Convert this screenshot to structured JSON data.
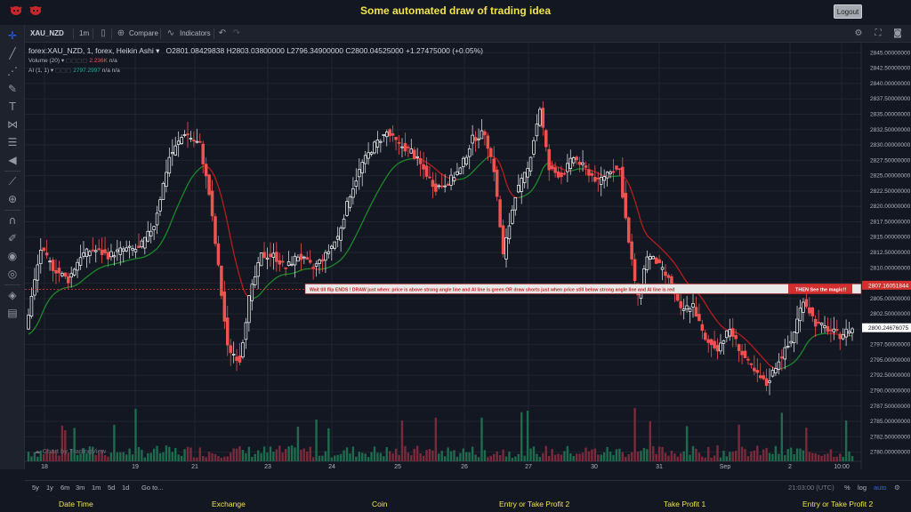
{
  "app": {
    "title": "Some automated draw of trading idea",
    "logout_label": "Logout"
  },
  "toolbar": {
    "symbol": "XAU_NZD",
    "interval": "1m",
    "compare_label": "Compare",
    "indicators_label": "Indicators"
  },
  "legend": {
    "title": "forex:XAU_NZD, 1, forex, Heikin Ashi",
    "open": "O2801.08429838",
    "high": "H2803.03800000",
    "low": "L2796.34900000",
    "close": "C2800.04525000",
    "change": "+1.27475000 (+0.05%)",
    "volume_label": "Volume (20)",
    "volume_value": "2.236K",
    "volume_na": "n/a",
    "ai_label": "AI (1, 1)",
    "ai_value": "2797.2997",
    "ai_na1": "n/a",
    "ai_na2": "n/a"
  },
  "annotation": {
    "text_1": "Wait till flip ENDS  !   DRAW just when:  price is above strong angle line and AI line is green        OR        draw shorts just when price still below strong angle line and AI line is red",
    "text_2": "THEN See the magic!!"
  },
  "price_axis": {
    "labels": [
      "2845.00000000",
      "2842.50000000",
      "2840.00000000",
      "2837.50000000",
      "2835.00000000",
      "2832.50000000",
      "2830.00000000",
      "2827.50000000",
      "2825.00000000",
      "2822.50000000",
      "2820.00000000",
      "2817.50000000",
      "2815.00000000",
      "2812.50000000",
      "2810.00000000",
      "2807.50000000",
      "2805.00000000",
      "2802.50000000",
      "2800.00000000",
      "2797.50000000",
      "2795.00000000",
      "2792.50000000",
      "2790.00000000",
      "2787.50000000",
      "2785.00000000",
      "2782.50000000",
      "2780.00000000"
    ],
    "marker_red": "2807.16051844",
    "marker_white": "2800.24676075"
  },
  "time_axis": {
    "labels": [
      "18",
      "19",
      "21",
      "23",
      "24",
      "25",
      "26",
      "27",
      "30",
      "31",
      "Sep",
      "2",
      "10:00"
    ]
  },
  "bottom": {
    "ranges": [
      "5y",
      "1y",
      "6m",
      "3m",
      "1m",
      "5d",
      "1d"
    ],
    "goto_label": "Go to...",
    "time": "21:03:00 (UTC)",
    "percent_label": "%",
    "log_label": "log",
    "auto_label": "auto"
  },
  "footer": {
    "tabs": [
      "Date Time",
      "Exchange",
      "Coin",
      "Entry or Take Profit 2",
      "Take Profit 1",
      "Entry or Take Profit 2"
    ]
  },
  "branding": {
    "chart_by": "Chart by TradingView"
  },
  "colors": {
    "bg": "#131722",
    "up": "#ffffff",
    "down": "#ef5350",
    "ai_green": "#1b8a2a",
    "ai_red": "#b71c1c",
    "vol_up": "#1e6b4e",
    "vol_down": "#7a2b3b",
    "accent": "#2962ff",
    "title_yellow": "#f0e44a"
  },
  "icons": [
    "crosshair-icon",
    "trend-line-icon",
    "fib-icon",
    "brush-icon",
    "text-icon",
    "pattern-icon",
    "measure-icon",
    "back-arrow-icon",
    "ruler-icon",
    "zoom-icon",
    "magnet-icon",
    "lock-draw-icon",
    "eye-icon",
    "layers-icon",
    "trash-icon"
  ],
  "chart_data": {
    "type": "candlestick",
    "ylim": [
      2778.5,
      2846.5
    ],
    "y_ticks": [
      2780,
      2782.5,
      2785,
      2787.5,
      2790,
      2792.5,
      2795,
      2797.5,
      2800,
      2802.5,
      2805,
      2807.5,
      2810,
      2812.5,
      2815,
      2817.5,
      2820,
      2822.5,
      2825,
      2827.5,
      2830,
      2832.5,
      2835,
      2837.5,
      2840,
      2842.5,
      2845
    ],
    "x_labels": [
      "18",
      "19",
      "21",
      "23",
      "24",
      "25",
      "26",
      "27",
      "30",
      "31",
      "Sep",
      "2",
      "10:00"
    ],
    "price_path": [
      [
        0,
        2800
      ],
      [
        5,
        2813
      ],
      [
        9,
        2810
      ],
      [
        14,
        2808
      ],
      [
        18,
        2812
      ],
      [
        22,
        2813
      ],
      [
        27,
        2812
      ],
      [
        32,
        2813
      ],
      [
        37,
        2813
      ],
      [
        42,
        2817
      ],
      [
        47,
        2828
      ],
      [
        52,
        2832
      ],
      [
        57,
        2830
      ],
      [
        60,
        2822
      ],
      [
        63,
        2810
      ],
      [
        66,
        2797
      ],
      [
        70,
        2795
      ],
      [
        73,
        2805
      ],
      [
        77,
        2812
      ],
      [
        81,
        2812
      ],
      [
        85,
        2810
      ],
      [
        89,
        2812
      ],
      [
        94,
        2810
      ],
      [
        98,
        2812
      ],
      [
        102,
        2815
      ],
      [
        106,
        2822
      ],
      [
        110,
        2827
      ],
      [
        114,
        2830
      ],
      [
        118,
        2832
      ],
      [
        122,
        2830
      ],
      [
        126,
        2829
      ],
      [
        130,
        2826
      ],
      [
        134,
        2823
      ],
      [
        138,
        2824
      ],
      [
        142,
        2826
      ],
      [
        146,
        2831
      ],
      [
        150,
        2832
      ],
      [
        153,
        2826
      ],
      [
        156,
        2812
      ],
      [
        160,
        2822
      ],
      [
        164,
        2826
      ],
      [
        168,
        2836
      ],
      [
        171,
        2826
      ],
      [
        175,
        2825
      ],
      [
        179,
        2828
      ],
      [
        183,
        2826
      ],
      [
        187,
        2824
      ],
      [
        191,
        2826
      ],
      [
        194,
        2826
      ],
      [
        197,
        2814
      ],
      [
        200,
        2805
      ],
      [
        203,
        2812
      ],
      [
        206,
        2811
      ],
      [
        210,
        2808
      ],
      [
        214,
        2803
      ],
      [
        218,
        2804
      ],
      [
        222,
        2798
      ],
      [
        226,
        2797
      ],
      [
        230,
        2800
      ],
      [
        234,
        2796
      ],
      [
        238,
        2793
      ],
      [
        242,
        2791
      ],
      [
        246,
        2795
      ],
      [
        250,
        2798
      ],
      [
        254,
        2805
      ],
      [
        258,
        2801
      ],
      [
        262,
        2800
      ],
      [
        266,
        2799
      ],
      [
        269,
        2800
      ]
    ],
    "ai_line_color_segments": "green when above, red when below",
    "annotation_price": 2806.5,
    "current_price": 2800.24676075,
    "marker_price": 2807.16051844
  }
}
